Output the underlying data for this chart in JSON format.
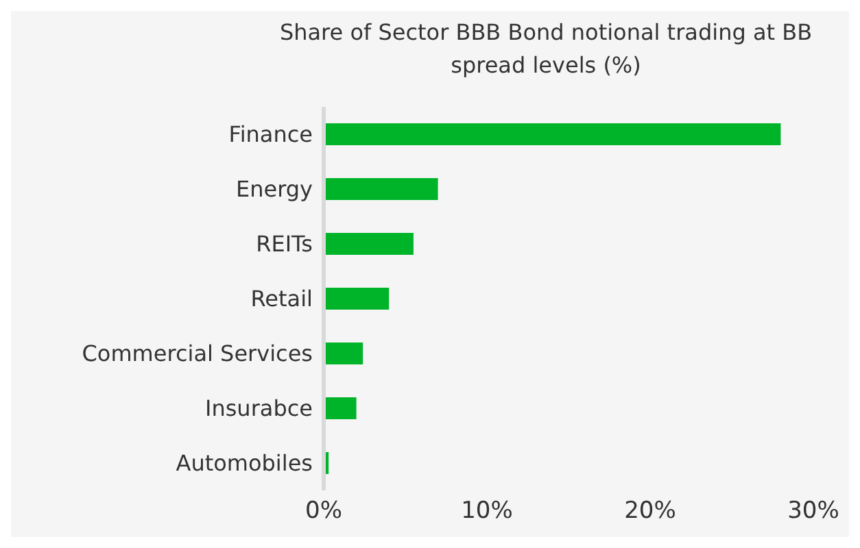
{
  "chart_data": {
    "type": "bar",
    "orientation": "horizontal",
    "title": "Share of Sector BBB Bond notional trading at BB spread levels (%)",
    "categories": [
      "Finance",
      "Energy",
      "REITs",
      "Retail",
      "Commercial Services",
      "Insurabce",
      "Automobiles"
    ],
    "values": [
      28,
      7,
      5.5,
      4,
      2.4,
      2,
      0.3
    ],
    "color": "#00b42a",
    "xlim": [
      0,
      30
    ],
    "xticks": [
      {
        "value": 0,
        "label": "0%"
      },
      {
        "value": 10,
        "label": "10%"
      },
      {
        "value": 20,
        "label": "20%"
      },
      {
        "value": 30,
        "label": "30%"
      }
    ],
    "grid": false,
    "legend": false
  }
}
